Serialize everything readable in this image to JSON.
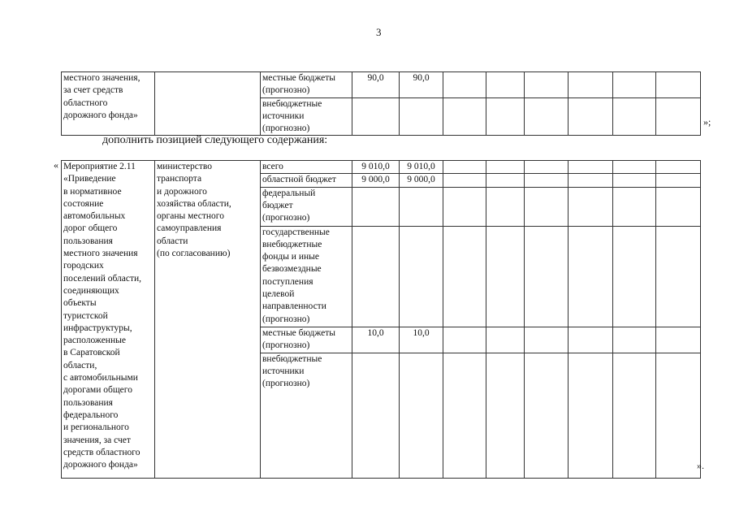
{
  "page_number": "3",
  "table1": {
    "left_cell": "местного значения,\nза счет средств\nобластного\nдорожного фонда»",
    "rows": [
      {
        "source": "местные бюджеты\n(прогнозно)",
        "values": [
          "90,0",
          "90,0",
          "",
          "",
          "",
          "",
          "",
          "",
          ""
        ]
      },
      {
        "source": "внебюджетные\nисточники\n(прогнозно)",
        "values": [
          "",
          "",
          "",
          "",
          "",
          "",
          "",
          "",
          ""
        ]
      }
    ],
    "closing_mark": "»;"
  },
  "paragraph": "дополнить позицией следующего содержания:",
  "table2": {
    "opening_mark": "«",
    "measure": "Мероприятие 2.11\n«Приведение\nв нормативное\nсостояние\nавтомобильных\nдорог общего\nпользования\nместного значения\nгородских\nпоселений области,\nсоединяющих\nобъекты\nтуристской\nинфраструктуры,\nрасположенные\nв Саратовской\nобласти,\nс автомобильными\nдорогами общего\nпользования\nфедерального\nи регионального\nзначения, за счет\nсредств областного\nдорожного фонда»",
    "executor": "министерство\nтранспорта\nи дорожного\nхозяйства области,\nорганы местного\nсамоуправления\nобласти\n(по согласованию)",
    "rows": [
      {
        "source": "всего",
        "values": [
          "9 010,0",
          "9 010,0",
          "",
          "",
          "",
          "",
          "",
          "",
          ""
        ]
      },
      {
        "source": "областной бюджет",
        "values": [
          "9 000,0",
          "9 000,0",
          "",
          "",
          "",
          "",
          "",
          "",
          ""
        ]
      },
      {
        "source": "федеральный\nбюджет\n(прогнозно)",
        "values": [
          "",
          "",
          "",
          "",
          "",
          "",
          "",
          "",
          ""
        ]
      },
      {
        "source": "государственные\nвнебюджетные\nфонды и иные\nбезвозмездные\nпоступления\nцелевой\nнаправленности\n(прогнозно)",
        "values": [
          "",
          "",
          "",
          "",
          "",
          "",
          "",
          "",
          ""
        ]
      },
      {
        "source": "местные бюджеты\n(прогнозно)",
        "values": [
          "10,0",
          "10,0",
          "",
          "",
          "",
          "",
          "",
          "",
          ""
        ]
      },
      {
        "source": "внебюджетные\nисточники\n(прогнозно)",
        "values": [
          "",
          "",
          "",
          "",
          "",
          "",
          "",
          "",
          ""
        ]
      }
    ],
    "closing_mark": "»."
  }
}
